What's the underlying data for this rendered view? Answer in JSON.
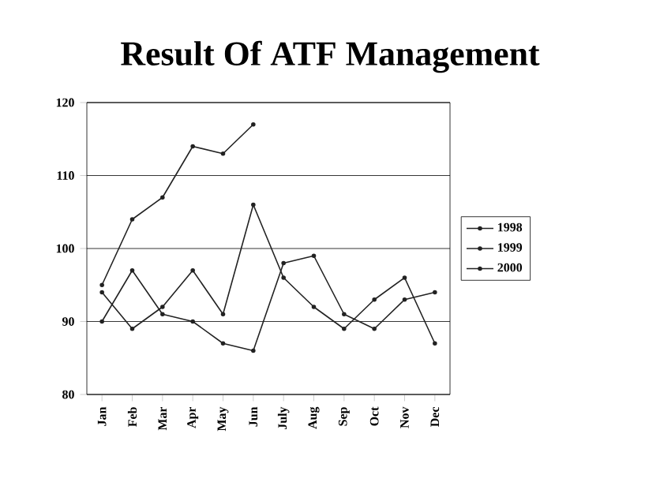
{
  "chart_data": {
    "type": "line",
    "title": "Result Of ATF Management",
    "categories": [
      "Jan",
      "Feb",
      "Mar",
      "Apr",
      "May",
      "Jun",
      "July",
      "Aug",
      "Sep",
      "Oct",
      "Nov",
      "Dec"
    ],
    "series": [
      {
        "name": "1998",
        "color": "#222222",
        "values": [
          94,
          89,
          92,
          97,
          91,
          106,
          96,
          92,
          89,
          93,
          96,
          87
        ]
      },
      {
        "name": "1999",
        "color": "#222222",
        "values": [
          90,
          97,
          91,
          90,
          87,
          86,
          98,
          99,
          91,
          89,
          93,
          94
        ]
      },
      {
        "name": "2000",
        "color": "#222222",
        "values": [
          95,
          104,
          107,
          114,
          113,
          117,
          null,
          null,
          null,
          null,
          null,
          null
        ]
      }
    ],
    "ylim": [
      80,
      120
    ],
    "yticks": [
      80,
      90,
      100,
      110,
      120
    ],
    "grid": "y",
    "legend": "right",
    "marker": "circle",
    "line_style": "solid"
  }
}
